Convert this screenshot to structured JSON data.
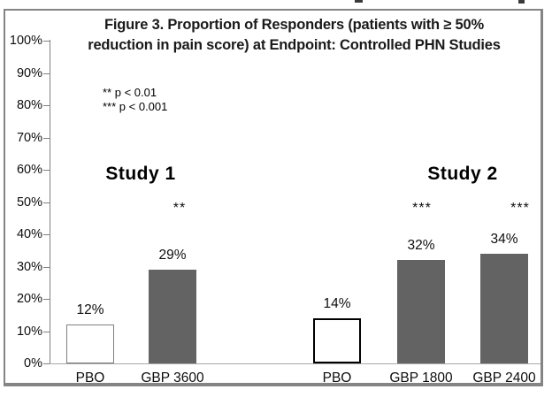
{
  "figure": {
    "title_line1": "Figure 3. Proportion of Responders (patients with ≥ 50%",
    "title_line2": "reduction in pain score) at Endpoint: Controlled PHN Studies",
    "significance_note_line1": "** p < 0.01",
    "significance_note_line2": "*** p < 0.001"
  },
  "colors": {
    "bar_fill_gray": "#636363",
    "bar_fill_white": "#ffffff",
    "pbo_border_study1": "#7f7f7f",
    "pbo_border_study2": "#000000",
    "axis_line": "#808080",
    "baseline": "#a8a8a8",
    "frame_border": "#848484",
    "text": "#0d0d0d"
  },
  "chart_data": {
    "type": "bar",
    "title": "Figure 3. Proportion of Responders (patients with ≥ 50% reduction in pain score) at Endpoint: Controlled PHN Studies",
    "xlabel": "",
    "ylabel": "",
    "ylim": [
      0,
      100
    ],
    "grid": false,
    "legend_position": "none",
    "y_ticks": [
      "0%",
      "10%",
      "20%",
      "30%",
      "40%",
      "50%",
      "60%",
      "70%",
      "80%",
      "90%",
      "100%"
    ],
    "annotations": [
      "** p < 0.01",
      "*** p < 0.001"
    ],
    "groups": [
      {
        "name": "Study 1",
        "bars": [
          {
            "category": "PBO",
            "value": 12,
            "value_label": "12%",
            "fill": "white",
            "significance": ""
          },
          {
            "category": "GBP 3600",
            "value": 29,
            "value_label": "29%",
            "fill": "gray",
            "significance": "**"
          }
        ]
      },
      {
        "name": "Study 2",
        "bars": [
          {
            "category": "PBO",
            "value": 14,
            "value_label": "14%",
            "fill": "white",
            "significance": ""
          },
          {
            "category": "GBP 1800",
            "value": 32,
            "value_label": "32%",
            "fill": "gray",
            "significance": "***"
          },
          {
            "category": "GBP 2400",
            "value": 34,
            "value_label": "34%",
            "fill": "gray",
            "significance": "***"
          }
        ]
      }
    ]
  }
}
